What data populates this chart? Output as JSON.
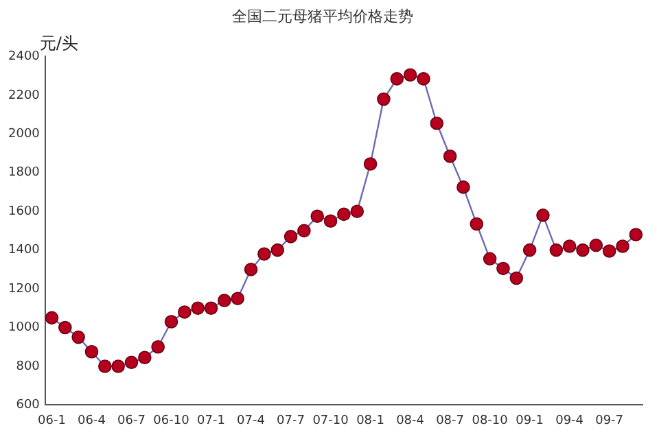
{
  "chart_data": {
    "type": "line",
    "title": "全国二元母猪平均价格走势",
    "ylabel": "元/头",
    "categories": [
      "06-1",
      null,
      null,
      "06-4",
      null,
      null,
      "06-7",
      null,
      null,
      "06-10",
      null,
      null,
      "07-1",
      null,
      null,
      "07-4",
      null,
      null,
      "07-7",
      null,
      null,
      "07-10",
      null,
      null,
      "08-1",
      null,
      null,
      "08-4",
      null,
      null,
      "08-7",
      null,
      null,
      "08-10",
      null,
      null,
      "09-1",
      null,
      null,
      "09-4",
      null,
      null,
      "09-7",
      null,
      null
    ],
    "series": [
      {
        "color": "#b5001e",
        "values": [
          1050,
          1000,
          950,
          875,
          800,
          800,
          820,
          845,
          900,
          1030,
          1080,
          1100,
          1100,
          1140,
          1150,
          1300,
          1380,
          1400,
          1470,
          1500,
          1575,
          1550,
          1585,
          1600,
          1845,
          2180,
          2285,
          2305,
          2285,
          2055,
          1885,
          1725,
          1535,
          1355,
          1305,
          1255,
          1400,
          1580,
          1400,
          1420,
          1400,
          1425,
          1395,
          1420,
          1480
        ]
      }
    ],
    "ylim": [
      600,
      2400
    ],
    "yticks": [
      600,
      800,
      1000,
      1200,
      1400,
      1600,
      1800,
      2000,
      2200,
      2400
    ],
    "grid": false,
    "legend": false,
    "marker": "circle",
    "line_style": "solid"
  }
}
